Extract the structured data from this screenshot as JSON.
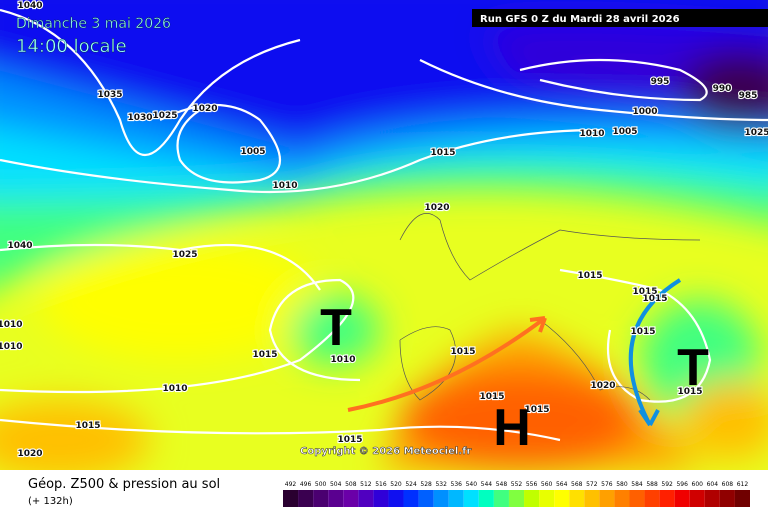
{
  "header": {
    "date": "Dimanche 3 mai 2026",
    "time": "14:00 locale",
    "run": "Run GFS 0 Z du Mardi 28 avril 2026"
  },
  "centers": [
    "T",
    "T",
    "H"
  ],
  "copyright": "Copyright © 2026 Meteociel.fr",
  "footer": {
    "title": "Géop. Z500 & pression au sol",
    "lead": "(+ 132h)"
  },
  "isobars": [
    "1040",
    "1035",
    "1030",
    "1025",
    "1020",
    "1005",
    "1010",
    "1015",
    "1020",
    "1025",
    "995",
    "990",
    "985",
    "1000",
    "1005",
    "1010",
    "1015",
    "1015",
    "1015",
    "1015",
    "1015",
    "1010",
    "1015",
    "1010",
    "1020",
    "1015",
    "1015",
    "1020",
    "1015",
    "1015",
    "1015",
    "1010",
    "1010",
    "1040",
    "1025"
  ],
  "scale": {
    "labels": [
      492,
      496,
      500,
      504,
      508,
      512,
      516,
      520,
      524,
      528,
      532,
      536,
      540,
      544,
      548,
      552,
      556,
      560,
      564,
      568,
      572,
      576,
      580,
      584,
      588,
      592,
      596,
      600,
      604,
      608,
      612
    ],
    "colors": [
      "#2a0030",
      "#3a0050",
      "#4a0070",
      "#5a0090",
      "#6a00a8",
      "#5000c0",
      "#3000d8",
      "#1010f0",
      "#0030ff",
      "#0060ff",
      "#0090ff",
      "#00b8ff",
      "#00e0ff",
      "#00ffc0",
      "#40ff80",
      "#80ff40",
      "#c0ff00",
      "#e8ff00",
      "#ffff00",
      "#ffe000",
      "#ffc000",
      "#ffa000",
      "#ff8000",
      "#ff6000",
      "#ff4000",
      "#ff2000",
      "#f00000",
      "#d00000",
      "#b00000",
      "#900000",
      "#700000"
    ]
  }
}
